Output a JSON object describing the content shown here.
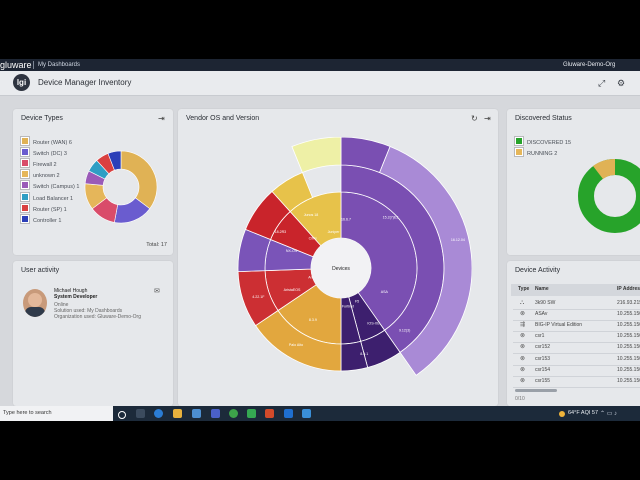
{
  "topbar": {
    "brand": "gluware",
    "breadcrumb": "My Dashboards",
    "org": "Gluware-Demo-Org"
  },
  "header": {
    "logo_text": "lgi",
    "title": "Device Manager Inventory"
  },
  "device_types": {
    "title": "Device Types",
    "items": [
      {
        "label": "Router (WAN) 6",
        "color": "#e0b255"
      },
      {
        "label": "Switch (DC) 3",
        "color": "#6a5ccf"
      },
      {
        "label": "Firewall 2",
        "color": "#d94c6a"
      },
      {
        "label": "unknown 2",
        "color": "#e5b65a"
      },
      {
        "label": "Switch (Campus) 1",
        "color": "#9a5ab8"
      },
      {
        "label": "Load Balancer 1",
        "color": "#2f9ec4"
      },
      {
        "label": "Router (SP) 1",
        "color": "#d94040"
      },
      {
        "label": "Controller 1",
        "color": "#2b3fb8"
      }
    ],
    "total": "Total: 17"
  },
  "user_activity": {
    "title": "User activity",
    "name": "Michael Hough",
    "role": "System Developer",
    "status": "Online",
    "solution": "Solution used: My Dashboards",
    "organization": "Organization used: Gluware-Demo-Org"
  },
  "vendor_os": {
    "title": "Vendor OS and Version",
    "center_label": "Devices",
    "labels": [
      {
        "text": "16.6.7"
      },
      {
        "text": "Cisco"
      },
      {
        "text": "15.2(7)E3"
      },
      {
        "text": "16.12.04"
      },
      {
        "text": "IOS-XE"
      },
      {
        "text": "Junos 18"
      },
      {
        "text": "Juniper"
      },
      {
        "text": "18.2R3"
      },
      {
        "text": "Citrix"
      },
      {
        "text": "NX-OS"
      },
      {
        "text": "Arista"
      },
      {
        "text": "F5"
      },
      {
        "text": "Fortinet"
      },
      {
        "text": "AristaEOS"
      },
      {
        "text": "4.22.1F"
      },
      {
        "text": "Palo Alto"
      },
      {
        "text": "ASA"
      },
      {
        "text": "9.12(3)"
      },
      {
        "text": "8.6.1"
      },
      {
        "text": "8.3.9"
      }
    ],
    "chart_data": {
      "type": "sunburst",
      "inner": [
        {
          "name": "Cisco",
          "value": 9,
          "color": "#7a4fb2"
        },
        {
          "name": "F5",
          "value": 1,
          "color": "#3d1f6e"
        },
        {
          "name": "",
          "value": 1,
          "color": "#3d1f6e"
        },
        {
          "name": "OS",
          "value": 3,
          "color": "#e2a73e"
        },
        {
          "name": "",
          "value": 2,
          "color": "#cc2f33"
        },
        {
          "name": "",
          "value": 1,
          "color": "#7a54b8"
        },
        {
          "name": "",
          "value": 2,
          "color": "#c9242b"
        },
        {
          "name": "",
          "value": 2,
          "color": "#e7c24a"
        }
      ]
    }
  },
  "discovered": {
    "title": "Discovered Status",
    "items": [
      {
        "label": "DISCOVERED 15",
        "color": "#27a32a"
      },
      {
        "label": "RUNNING 2",
        "color": "#e5b65a"
      }
    ]
  },
  "device_activity": {
    "title": "Device Activity",
    "headers": {
      "type": "Type",
      "name": "Name",
      "ip": "IP Addres"
    },
    "rows": [
      {
        "name": "3k90 SW",
        "ip": "216.93.215."
      },
      {
        "name": "ASAv",
        "ip": "10.255.150"
      },
      {
        "name": "BIG-IP Virtual Edition",
        "ip": "10.255.150"
      },
      {
        "name": "csr1",
        "ip": "10.255.150"
      },
      {
        "name": "csr152",
        "ip": "10.255.150"
      },
      {
        "name": "csr153",
        "ip": "10.255.150"
      },
      {
        "name": "csr154",
        "ip": "10.255.150"
      },
      {
        "name": "csr155",
        "ip": "10.255.150"
      }
    ],
    "footer": "0/10"
  },
  "taskbar": {
    "search_placeholder": "Type here to search",
    "weather": "64°F AQI 57"
  }
}
